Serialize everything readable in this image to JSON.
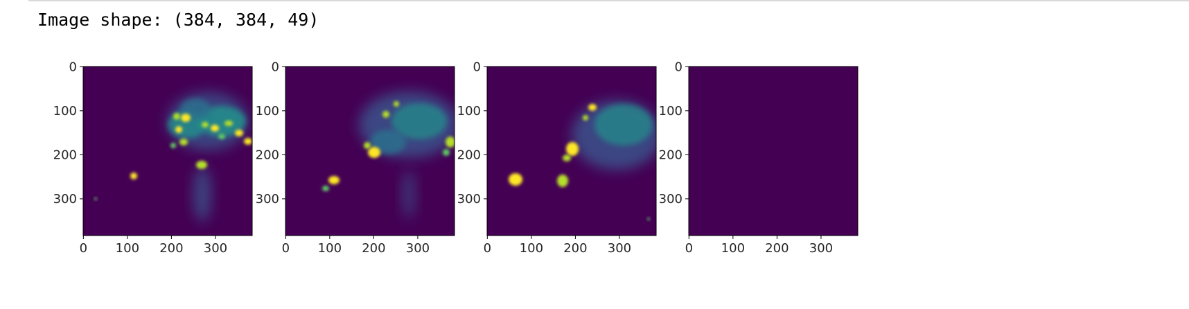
{
  "output": {
    "text": "Image shape: (384, 384, 49)"
  },
  "figure": {
    "colors": {
      "background": "#440154",
      "low": "#472a7a",
      "mid": "#2c728e",
      "high": "#22a884",
      "peak": "#b5de2b",
      "max": "#fde725"
    },
    "subplots": [
      {
        "id": "panel-1",
        "xticks": [
          "0",
          "100",
          "200",
          "300"
        ],
        "yticks": [
          "0",
          "100",
          "200",
          "300"
        ]
      },
      {
        "id": "panel-2",
        "xticks": [
          "0",
          "100",
          "200",
          "300"
        ],
        "yticks": [
          "0",
          "100",
          "200",
          "300"
        ]
      },
      {
        "id": "panel-3",
        "xticks": [
          "0",
          "100",
          "200",
          "300"
        ],
        "yticks": [
          "0",
          "100",
          "200",
          "300"
        ]
      },
      {
        "id": "panel-4",
        "xticks": [
          "0",
          "100",
          "200",
          "300"
        ],
        "yticks": [
          "0",
          "100",
          "200",
          "300"
        ]
      }
    ]
  }
}
